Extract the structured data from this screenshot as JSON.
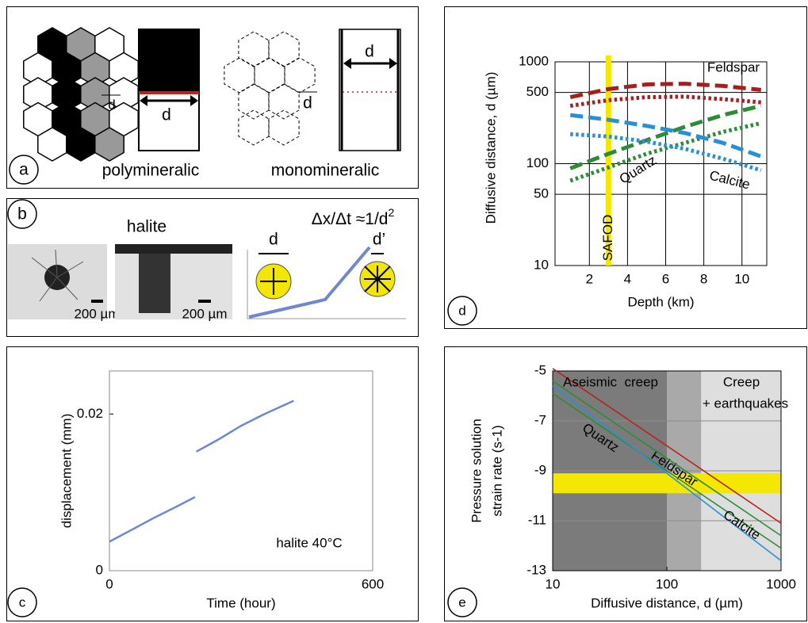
{
  "panels": {
    "a": {
      "label": "a",
      "d_labels": [
        "d",
        "d",
        "d",
        "d"
      ],
      "left_caption": "polymineralic",
      "right_caption": "monomineralic"
    },
    "b": {
      "label": "b",
      "title": "halite",
      "formula": "Δx/Δt ≈1/d",
      "formula_exp": "2",
      "scale_bars": [
        "200 µm",
        "200 µm"
      ],
      "d_labels": [
        "d",
        "d’"
      ]
    }
  },
  "chart_data": [
    {
      "panel_label": "c",
      "type": "line",
      "xlabel": "Time (hour)",
      "ylabel": "displacement (mm)",
      "annotation": "halite 40°C",
      "xlim": [
        0,
        600
      ],
      "ylim": [
        0,
        0.0255
      ],
      "xticks": [
        0,
        600
      ],
      "yticks": [
        0,
        0.02
      ],
      "series": [
        {
          "color": "#6f86d4",
          "x": [
            0,
            50,
            100,
            150,
            195,
            197,
            198,
            250,
            300,
            350,
            420
          ],
          "values": [
            0.0037,
            0.0052,
            0.0067,
            0.0081,
            0.0094,
            null,
            0.0152,
            0.0168,
            0.0185,
            0.0199,
            0.0217
          ]
        }
      ]
    },
    {
      "panel_label": "d",
      "type": "line",
      "yscale": "log",
      "xlabel": "Depth (km)",
      "ylabel": "Diffusive distance, d (µm)",
      "xlim": [
        0.2,
        11.3
      ],
      "ylim": [
        10,
        1000
      ],
      "xticks": [
        2,
        4,
        6,
        8,
        10
      ],
      "yticks": [
        10,
        50,
        100,
        500,
        1000
      ],
      "grid": true,
      "marker_line": {
        "label": "SAFOD",
        "x": 3,
        "color": "#f5e800"
      },
      "series": [
        {
          "name": "Feldspar",
          "color": "#a3201f",
          "dash": "dashed",
          "x": [
            1,
            3,
            5,
            7,
            9,
            11
          ],
          "values": [
            450,
            540,
            600,
            610,
            580,
            530
          ]
        },
        {
          "color": "#a3201f",
          "dash": "dotted",
          "x": [
            1,
            3,
            5,
            7,
            9,
            11
          ],
          "values": [
            370,
            420,
            450,
            455,
            430,
            400
          ]
        },
        {
          "name": "Quartz",
          "color": "#2e8b3a",
          "dash": "dashed",
          "x": [
            1,
            3,
            5,
            7,
            9,
            11
          ],
          "values": [
            90,
            125,
            170,
            230,
            300,
            370
          ]
        },
        {
          "color": "#2e8b3a",
          "dash": "dotted",
          "x": [
            1,
            3,
            5,
            7,
            9,
            11
          ],
          "values": [
            68,
            92,
            125,
            160,
            205,
            250
          ]
        },
        {
          "name": "Calcite",
          "color": "#2b8fd6",
          "dash": "dashed",
          "x": [
            1,
            3,
            5,
            7,
            9,
            11
          ],
          "values": [
            300,
            270,
            235,
            200,
            160,
            118
          ]
        },
        {
          "color": "#2b8fd6",
          "dash": "dotted",
          "x": [
            1,
            3,
            5,
            7,
            9,
            11
          ],
          "values": [
            195,
            185,
            165,
            140,
            112,
            86
          ]
        }
      ]
    },
    {
      "panel_label": "e",
      "type": "line",
      "xscale": "log",
      "xlabel": "Diffusive distance, d (µm)",
      "ylabel": [
        "Pressure solution",
        "strain rate (s-1)"
      ],
      "xlim": [
        10,
        1000
      ],
      "ylim": [
        -13,
        -5
      ],
      "xticks": [
        10,
        100,
        1000
      ],
      "yticks": [
        -5,
        -7,
        -9,
        -11,
        -13
      ],
      "grid": true,
      "regions": [
        {
          "from": 10,
          "to": 100,
          "color": "#7b7b7b"
        },
        {
          "from": 100,
          "to": 200,
          "color": "#a9a9a9"
        },
        {
          "from": 200,
          "to": 1000,
          "color": "#dedede"
        }
      ],
      "region_labels": [
        "Aseismic  creep",
        "Creep",
        "+ earthquakes"
      ],
      "band": {
        "from": -9.1,
        "to": -9.9,
        "color": "#f5e800"
      },
      "series": [
        {
          "name": "Feldspar",
          "color": "#b3241f",
          "x": [
            10,
            1000
          ],
          "values": [
            -4.9,
            -11.1
          ]
        },
        {
          "name": "Quartz",
          "color": "#2e8b3a",
          "x": [
            10,
            1000
          ],
          "values": [
            -5.4,
            -11.6
          ]
        },
        {
          "color": "#2e8b3a",
          "x": [
            10,
            1000
          ],
          "values": [
            -5.9,
            -12.1
          ]
        },
        {
          "name": "Calcite",
          "color": "#2b8fd6",
          "x": [
            10,
            1000
          ],
          "values": [
            -5.6,
            -12.6
          ]
        }
      ]
    }
  ]
}
